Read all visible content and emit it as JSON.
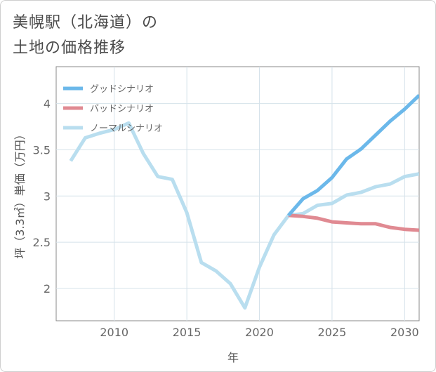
{
  "title": {
    "line1": "美幌駅（北海道）の",
    "line2": "土地の価格推移"
  },
  "chart_data": {
    "type": "line",
    "xlabel": "年",
    "ylabel": "坪（3.3㎡）単価（万円）",
    "xlim": [
      2006,
      2031
    ],
    "ylim": [
      1.65,
      4.4
    ],
    "x_ticks": [
      2010,
      2015,
      2020,
      2025,
      2030
    ],
    "x_tick_labels": [
      "2010",
      "2015",
      "2020",
      "2025",
      "2030"
    ],
    "y_ticks": [
      2,
      2.5,
      3,
      3.5,
      4
    ],
    "y_tick_labels": [
      "2",
      "2.5",
      "3",
      "3.5",
      "4"
    ],
    "grid": true,
    "legend_position": "top-left",
    "series": [
      {
        "name": "グッドシナリオ",
        "color": "#6bb8ea",
        "x": [
          2022,
          2023,
          2024,
          2025,
          2026,
          2027,
          2028,
          2029,
          2030,
          2031
        ],
        "values": [
          2.79,
          2.97,
          3.06,
          3.2,
          3.4,
          3.51,
          3.66,
          3.81,
          3.94,
          4.09
        ]
      },
      {
        "name": "バッドシナリオ",
        "color": "#e08a92",
        "x": [
          2022,
          2023,
          2024,
          2025,
          2026,
          2027,
          2028,
          2029,
          2030,
          2031
        ],
        "values": [
          2.79,
          2.78,
          2.76,
          2.72,
          2.71,
          2.7,
          2.7,
          2.66,
          2.64,
          2.63
        ]
      },
      {
        "name": "ノーマルシナリオ",
        "color": "#b9deef",
        "x": [
          2007,
          2008,
          2009,
          2010,
          2011,
          2012,
          2013,
          2014,
          2015,
          2016,
          2017,
          2018,
          2019,
          2020,
          2021,
          2022,
          2023,
          2024,
          2025,
          2026,
          2027,
          2028,
          2029,
          2030,
          2031
        ],
        "values": [
          3.38,
          3.63,
          3.68,
          3.72,
          3.79,
          3.46,
          3.21,
          3.18,
          2.82,
          2.28,
          2.19,
          2.05,
          1.79,
          2.23,
          2.58,
          2.79,
          2.81,
          2.9,
          2.92,
          3.01,
          3.04,
          3.1,
          3.13,
          3.21,
          3.24
        ]
      }
    ]
  }
}
